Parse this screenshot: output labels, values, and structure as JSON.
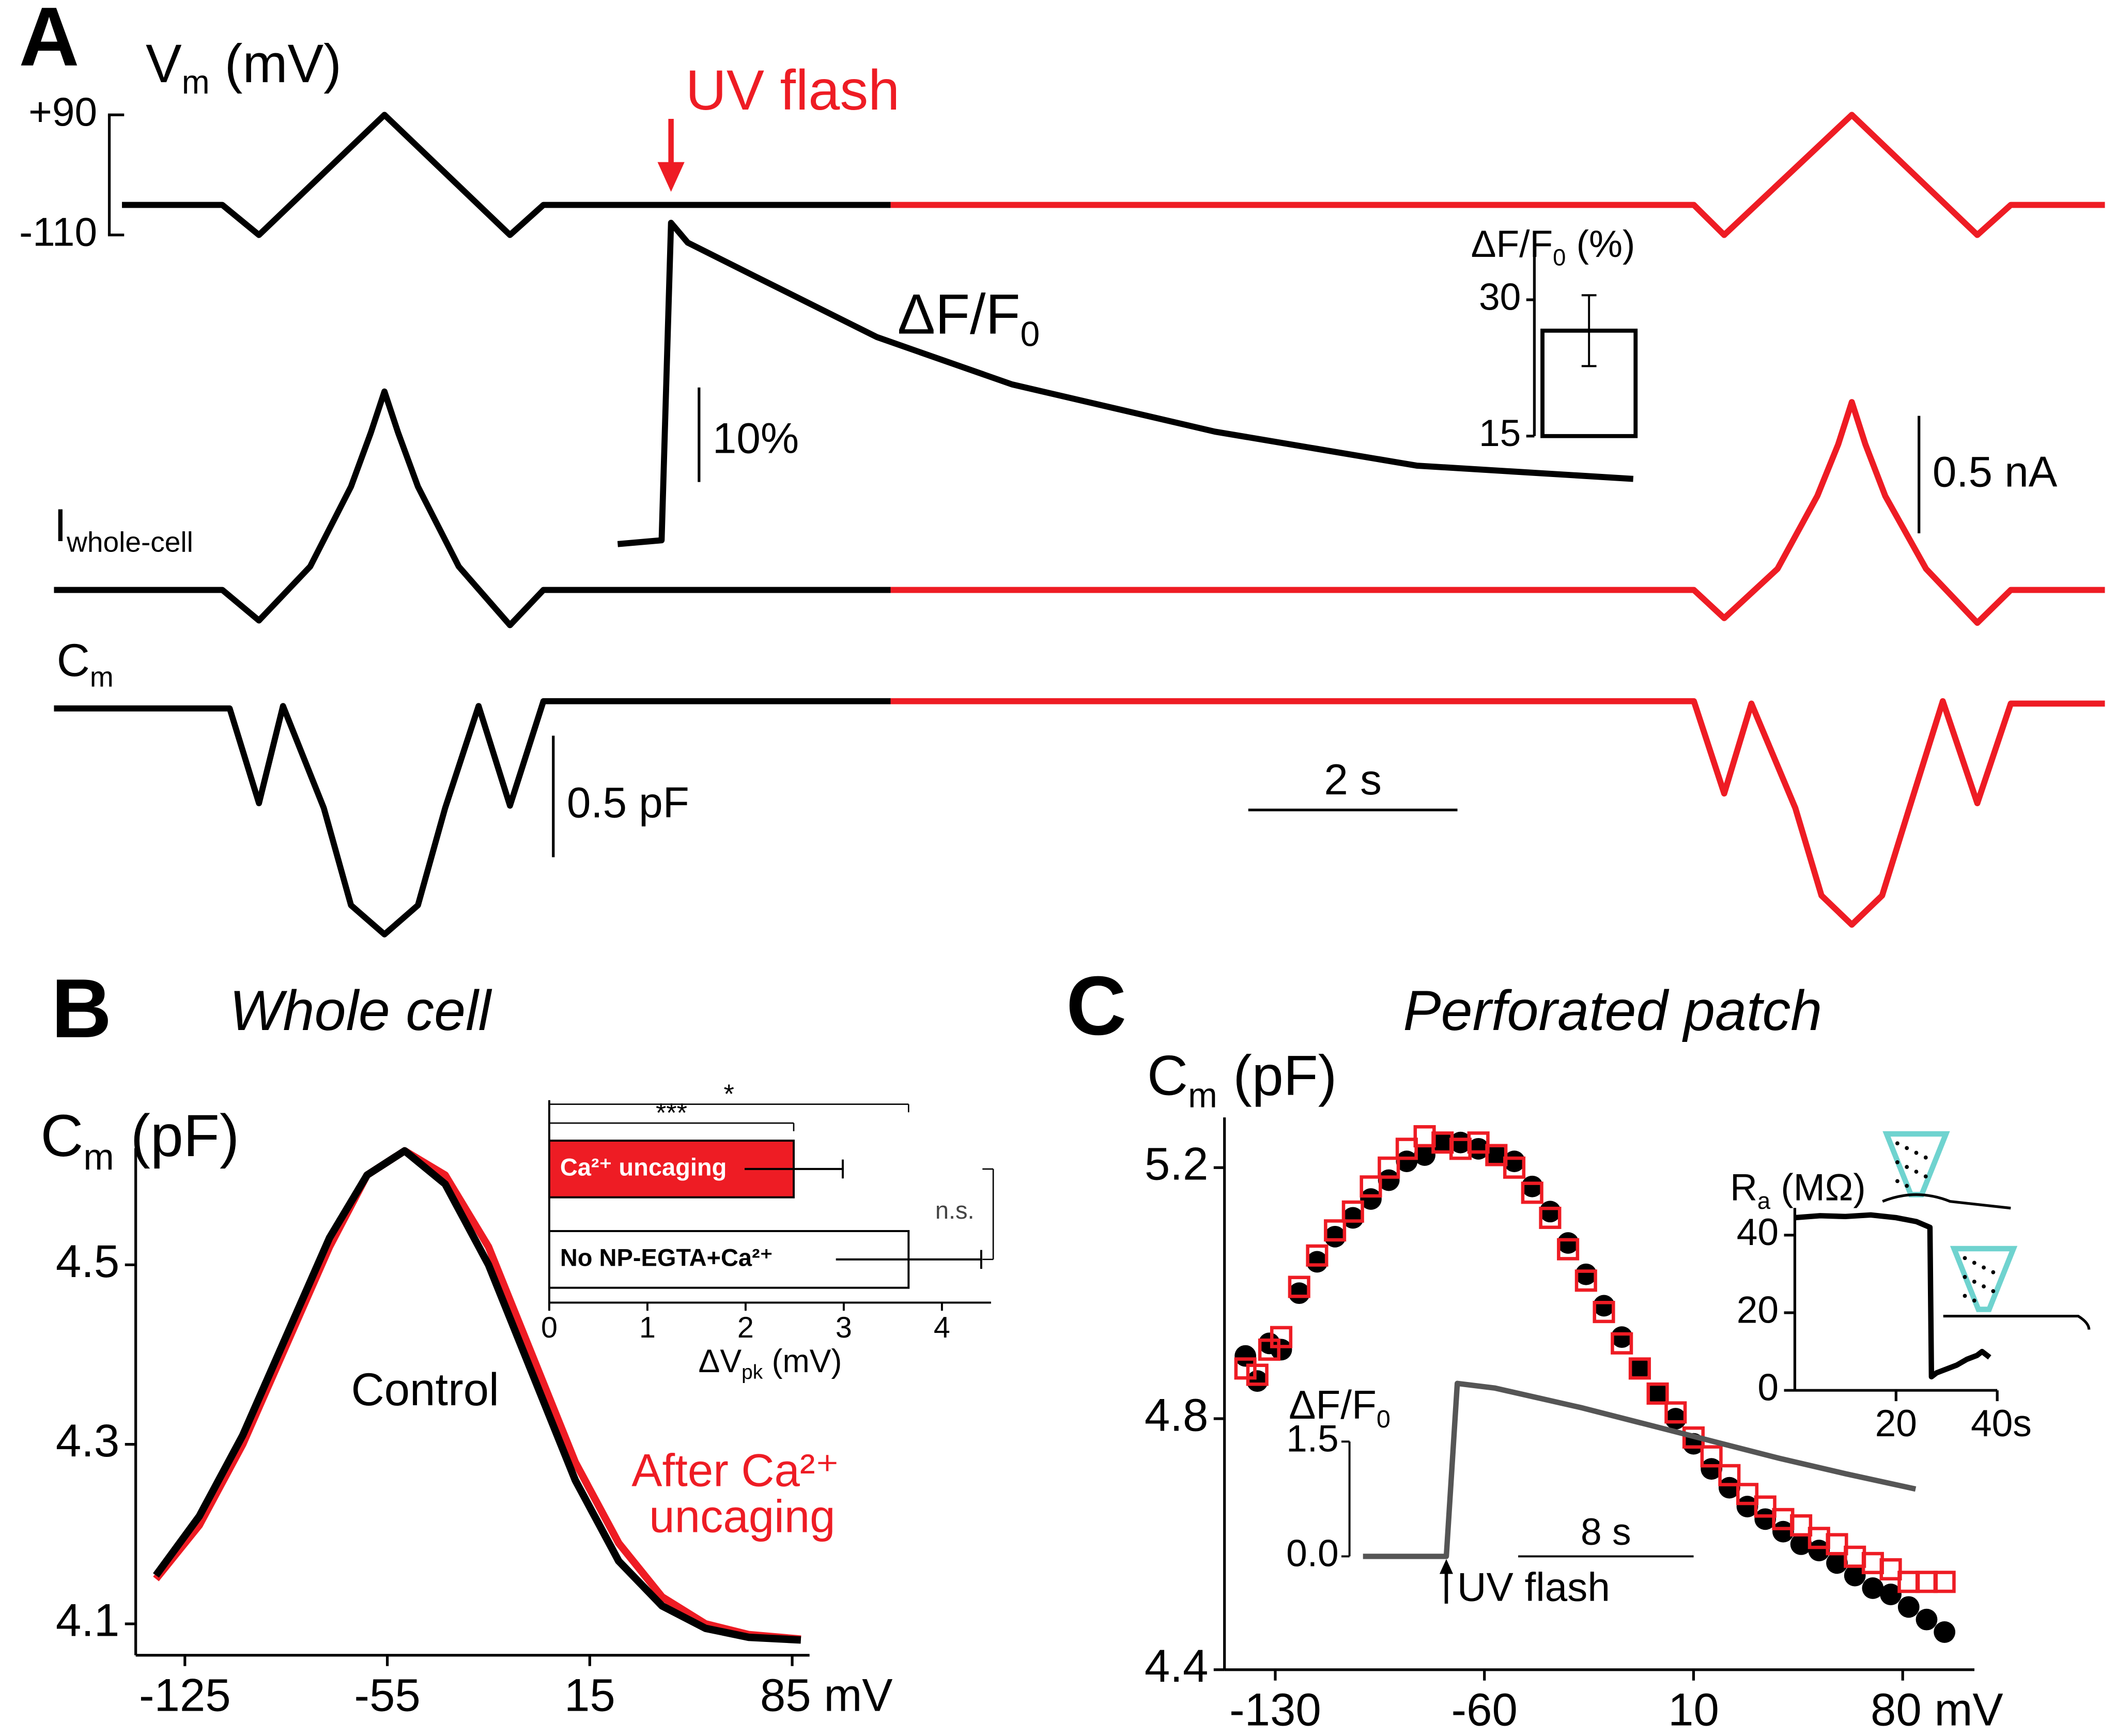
{
  "chart_data": [
    {
      "type": "trace",
      "panel_label": "A",
      "vm": {
        "label": [
          {
            "text": "V"
          },
          {
            "text": "m",
            "sub": true
          },
          {
            "text": " (mV)"
          }
        ],
        "ticks": [
          {
            "value": 90,
            "label": "+90"
          },
          {
            "value": -110,
            "label": "-110"
          }
        ],
        "series": [
          {
            "color": "#000000",
            "x": [
              0.65,
              1.61,
              1.96,
              3.16,
              4.36,
              4.68,
              8.0
            ],
            "values": [
              -60,
              -60,
              -110,
              90,
              -110,
              -60,
              -60
            ]
          },
          {
            "color": "#ee1c24",
            "x": [
              8.0,
              15.68,
              15.97,
              17.19,
              18.39,
              18.71,
              19.61
            ],
            "values": [
              -60,
              -60,
              -110,
              90,
              -110,
              -60,
              -60
            ]
          }
        ]
      },
      "fluo": {
        "label": [
          {
            "text": "ΔF/F"
          },
          {
            "text": "0",
            "sub": true
          }
        ],
        "scale_bar": {
          "value": 10,
          "label": "10%"
        },
        "series": [
          {
            "color": "#000000",
            "x": [
              5.39,
              5.81,
              5.9,
              6.06,
              6.71,
              7.87,
              9.16,
              11.1,
              13.03,
              15.1
            ],
            "values": [
              0,
              0.4,
              34,
              31.9,
              28.3,
              21.9,
              16.9,
              11.9,
              8.3,
              6.9
            ]
          }
        ]
      },
      "current": {
        "label": [
          {
            "text": "I"
          },
          {
            "text": "whole-cell",
            "sub": true
          }
        ],
        "scale_bar": {
          "value": 0.5,
          "label": "0.5 nA"
        },
        "series": [
          {
            "color": "#000000",
            "x": [
              0,
              1.61,
              1.96,
              2.45,
              2.84,
              3.03,
              3.16,
              3.29,
              3.48,
              3.87,
              4.36,
              4.68,
              8.0
            ],
            "values": [
              0,
              0,
              -0.13,
              0.1,
              0.44,
              0.67,
              0.845,
              0.67,
              0.44,
              0.1,
              -0.15,
              0,
              0
            ]
          },
          {
            "color": "#ee1c24",
            "x": [
              8.0,
              15.68,
              15.97,
              16.48,
              16.86,
              17.06,
              17.19,
              17.32,
              17.51,
              17.9,
              18.39,
              18.71,
              19.61
            ],
            "values": [
              0,
              0,
              -0.12,
              0.09,
              0.4,
              0.62,
              0.8,
              0.62,
              0.4,
              0.09,
              -0.14,
              0,
              0
            ]
          }
        ]
      },
      "cm": {
        "label": [
          {
            "text": "C"
          },
          {
            "text": "m",
            "sub": true
          }
        ],
        "scale_bar": {
          "value": 0.5,
          "label": "0.5 pF"
        },
        "series": [
          {
            "color": "#000000",
            "x": [
              0,
              1.68,
              1.96,
              2.19,
              2.58,
              2.84,
              3.16,
              3.48,
              3.74,
              4.06,
              4.36,
              4.68,
              8.0
            ],
            "values": [
              -0.01,
              -0.01,
              -0.4,
              0,
              -0.42,
              -0.82,
              -0.94,
              -0.82,
              -0.42,
              0,
              -0.41,
              0.02,
              0.02
            ]
          },
          {
            "color": "#ee1c24",
            "x": [
              8.0,
              15.68,
              15.97,
              16.23,
              16.65,
              16.9,
              17.19,
              17.48,
              17.74,
              18.06,
              18.39,
              18.71,
              19.61
            ],
            "values": [
              0.02,
              0.02,
              -0.36,
              0.01,
              -0.42,
              -0.78,
              -0.9,
              -0.78,
              -0.42,
              0.02,
              -0.4,
              0.01,
              0.01
            ]
          }
        ]
      },
      "time_scale_bar": {
        "value": 2,
        "label": "2 s"
      },
      "annotation": {
        "text": "UV flash",
        "x": 5.9,
        "color": "#ee1c24"
      }
    },
    {
      "type": "bar",
      "title": [
        {
          "text": "ΔF/F"
        },
        {
          "text": "0",
          "sub": true
        },
        {
          "text": " (%)"
        }
      ],
      "values": [
        26.6
      ],
      "errors": [
        3.9
      ],
      "color": "#ffffff",
      "ylim": [
        15,
        35
      ],
      "yticks": [
        15,
        30
      ]
    },
    {
      "type": "line",
      "panel_label": "B",
      "title": "Whole cell",
      "ylabel": [
        {
          "text": "C"
        },
        {
          "text": "m",
          "sub": true
        },
        {
          "text": " (pF)"
        }
      ],
      "x": [
        -135,
        -120,
        -105,
        -90,
        -75,
        -62,
        -49,
        -35,
        -20,
        -5,
        10,
        25,
        40,
        55,
        70,
        88
      ],
      "series": [
        {
          "color": "#ee1c24",
          "values": [
            4.15,
            4.21,
            4.3,
            4.41,
            4.52,
            4.6,
            4.627,
            4.6,
            4.52,
            4.4,
            4.28,
            4.19,
            4.13,
            4.1,
            4.088,
            4.083
          ]
        },
        {
          "color": "#000000",
          "values": [
            4.154,
            4.22,
            4.31,
            4.42,
            4.53,
            4.6,
            4.627,
            4.59,
            4.5,
            4.38,
            4.26,
            4.17,
            4.12,
            4.095,
            4.085,
            4.082
          ]
        }
      ],
      "annotations": [
        {
          "text": "Control",
          "color": "#000000"
        },
        {
          "text": "After Ca²⁺",
          "color": "#ee1c24"
        },
        {
          "text": "uncaging",
          "color": "#ee1c24"
        }
      ],
      "xlim": [
        -142,
        91
      ],
      "xticks": [
        -125,
        -55,
        15,
        {
          "value": 85,
          "label": "85 mV"
        }
      ],
      "ylim": [
        4.065,
        4.63
      ],
      "yticks": [
        4.1,
        4.3,
        4.5
      ]
    },
    {
      "type": "bar",
      "horizontal": true,
      "categories": [
        "Ca²⁺ uncaging",
        "No NP-EGTA+Ca²⁺"
      ],
      "values": [
        2.49,
        3.66
      ],
      "errors": [
        0.5,
        0.74
      ],
      "colors": [
        "#ee1c24",
        "#ffffff"
      ],
      "xlabel": [
        {
          "text": "ΔV"
        },
        {
          "text": "pk",
          "sub": true
        },
        {
          "text": " (mV)"
        }
      ],
      "xlim": [
        0,
        4.5
      ],
      "xticks": [
        0,
        1,
        2,
        3,
        4
      ],
      "significance": [
        "***",
        "*",
        "n.s."
      ]
    },
    {
      "type": "scatter",
      "panel_label": "C",
      "title": "Perforated patch",
      "ylabel": [
        {
          "text": "C"
        },
        {
          "text": "m",
          "sub": true
        },
        {
          "text": " (pF)"
        }
      ],
      "x": [
        -140,
        -136,
        -132,
        -128,
        -122,
        -116,
        -110,
        -104,
        -98,
        -92,
        -86,
        -80,
        -74,
        -68,
        -62,
        -56,
        -50,
        -44,
        -38,
        -32,
        -26,
        -20,
        -14,
        -8,
        -2,
        4,
        10,
        16,
        22,
        28,
        34,
        40,
        46,
        52,
        58,
        64,
        70,
        76,
        82,
        88,
        94
      ],
      "series": [
        {
          "color": "#000000",
          "marker": "circle",
          "values": [
            4.9,
            4.86,
            4.92,
            4.91,
            5.0,
            5.05,
            5.09,
            5.12,
            5.15,
            5.18,
            5.21,
            5.22,
            5.24,
            5.24,
            5.23,
            5.22,
            5.21,
            5.17,
            5.13,
            5.08,
            5.03,
            4.98,
            4.93,
            4.88,
            4.84,
            4.8,
            4.76,
            4.72,
            4.69,
            4.66,
            4.64,
            4.62,
            4.6,
            4.59,
            4.57,
            4.55,
            4.53,
            4.52,
            4.5,
            4.48,
            4.46
          ]
        },
        {
          "color": "#ee1c24",
          "marker": "square",
          "values": [
            4.88,
            4.87,
            4.91,
            4.93,
            5.01,
            5.06,
            5.1,
            5.13,
            5.17,
            5.2,
            5.23,
            5.25,
            5.24,
            5.23,
            5.24,
            5.22,
            5.2,
            5.16,
            5.12,
            5.07,
            5.02,
            4.97,
            4.92,
            4.88,
            4.84,
            4.81,
            4.77,
            4.74,
            4.71,
            4.68,
            4.66,
            4.64,
            4.63,
            4.61,
            4.6,
            4.58,
            4.57,
            4.56,
            4.54,
            4.54,
            4.54
          ]
        }
      ],
      "xlim": [
        -147,
        104
      ],
      "xticks": [
        -130,
        -60,
        10,
        {
          "value": 80,
          "label": "80 mV"
        }
      ],
      "ylim": [
        4.4,
        5.28
      ],
      "yticks": [
        4.4,
        4.8,
        5.2
      ]
    },
    {
      "type": "line",
      "ylabel": [
        {
          "text": "R"
        },
        {
          "text": "a",
          "sub": true
        },
        {
          "text": " (MΩ)"
        }
      ],
      "x": [
        0,
        5,
        10,
        15,
        20,
        24,
        26.7,
        27,
        28,
        30,
        32,
        34,
        36,
        37,
        38.5
      ],
      "values": [
        44.5,
        45,
        44.8,
        45.2,
        44.5,
        43.5,
        42,
        3.5,
        4.5,
        5.5,
        6.5,
        8,
        9,
        10,
        8.5
      ],
      "color": "#000000",
      "xlim": [
        0,
        40
      ],
      "xticks": [
        20,
        {
          "value": 40,
          "label": "40s"
        }
      ],
      "ylim": [
        0,
        47
      ],
      "yticks": [
        0,
        20,
        40
      ]
    },
    {
      "type": "line",
      "ylabel": [
        {
          "text": "ΔF/F"
        },
        {
          "text": "0",
          "sub": true
        }
      ],
      "x": [
        0,
        3.8,
        4.3,
        6,
        8,
        10,
        13,
        16,
        19,
        22,
        25.2
      ],
      "values": [
        0,
        0,
        2.26,
        2.2,
        2.07,
        1.94,
        1.72,
        1.5,
        1.28,
        1.08,
        0.88
      ],
      "color": "#555555",
      "yticks": [
        {
          "value": 0,
          "label": "0.0"
        },
        1.5
      ],
      "time_scale_bar": {
        "value": 8,
        "label": "8 s"
      },
      "annotation": {
        "text": "UV flash",
        "x": 3.8
      }
    }
  ]
}
